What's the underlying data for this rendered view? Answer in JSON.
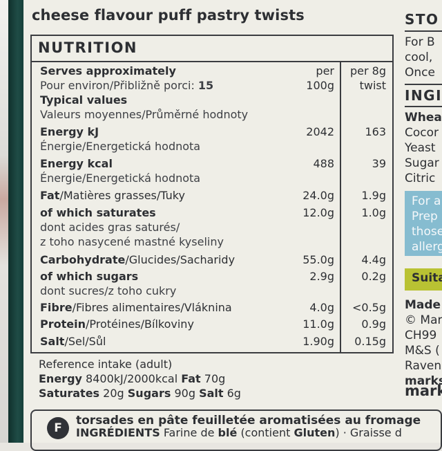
{
  "title": "cheese flavour puff pastry twists",
  "nutrition": {
    "heading": "NUTRITION",
    "serves_label": "Serves approximately",
    "serves_sub_prefix": "Pour environ/Přibližně porci:",
    "serves_count": "15",
    "col_per100_line1": "per",
    "col_per100_line2": "100g",
    "col_per8_line1": "per 8g",
    "col_per8_line2": "twist",
    "typical_label": "Typical values",
    "typical_sub": "Valeurs moyennes/Průměrné hodnoty",
    "rows": [
      {
        "label": "Energy kJ",
        "sub": "Énergie/Energetická hodnota",
        "per100": "2042",
        "per8": "163"
      },
      {
        "label": "Energy kcal",
        "sub": "Énergie/Energetická hodnota",
        "per100": "488",
        "per8": "39"
      },
      {
        "label_bold": "Fat",
        "label_rest": "/Matières grasses/Tuky",
        "per100": "24.0g",
        "per8": "1.9g"
      },
      {
        "label": "of which saturates",
        "sub1": "dont acides gras saturés/",
        "sub2": "z toho nasycené mastné kyseliny",
        "per100": "12.0g",
        "per8": "1.0g"
      },
      {
        "label_bold": "Carbohydrate",
        "label_rest": "/Glucides/Sacharidy",
        "per100": "55.0g",
        "per8": "4.4g"
      },
      {
        "label": "of which sugars",
        "sub": "dont sucres/z toho cukry",
        "per100": "2.9g",
        "per8": "0.2g"
      },
      {
        "label_bold": "Fibre",
        "label_rest": "/Fibres alimentaires/Vláknina",
        "per100": "4.0g",
        "per8": "<0.5g"
      },
      {
        "label_bold": "Protein",
        "label_rest": "/Protéines/Bílkoviny",
        "per100": "11.0g",
        "per8": "0.9g"
      },
      {
        "label_bold": "Salt",
        "label_rest": "/Sel/Sůl",
        "per100": "1.90g",
        "per8": "0.15g"
      }
    ]
  },
  "reference": {
    "line1": "Reference intake (adult)",
    "energy_label": "Energy",
    "energy_value": "8400kJ/2000kcal",
    "fat_label": "Fat",
    "fat_value": "70g",
    "sat_label": "Saturates",
    "sat_value": "20g",
    "sugars_label": "Sugars",
    "sugars_value": "90g",
    "salt_label": "Salt",
    "salt_value": "6g"
  },
  "french": {
    "badge": "F",
    "title": "torsades en pâte feuilletée aromatisées au fromage",
    "ingr_label": "INGRÉDIENTS",
    "ingr_text_a": "Farine de",
    "ingr_ble": "blé",
    "ingr_text_b": "(contient",
    "ingr_gluten": "Gluten",
    "ingr_text_c": ") · Graisse d"
  },
  "right_column": {
    "storage_head": "STO",
    "storage_lines": [
      "For B",
      "cool,",
      "Once"
    ],
    "ingr_head": "INGI",
    "ingr_lines": [
      "Wheat",
      "Cocor",
      "Yeast",
      "Sugar",
      "Citric"
    ],
    "blue_lines": [
      "For a",
      "Prep",
      "those",
      "allerg"
    ],
    "green_label": "Suita",
    "made_lines": [
      "Made",
      "© Mar",
      "CH99",
      "M&S (",
      "Raven",
      "marks"
    ],
    "brand": "mark"
  },
  "colors": {
    "pack_bg": "#efeee7",
    "ink": "#2d2f33",
    "spine_green": "#1f4c46",
    "allergy_blue": "#86bcd0",
    "suitable_green": "#b9c233"
  }
}
